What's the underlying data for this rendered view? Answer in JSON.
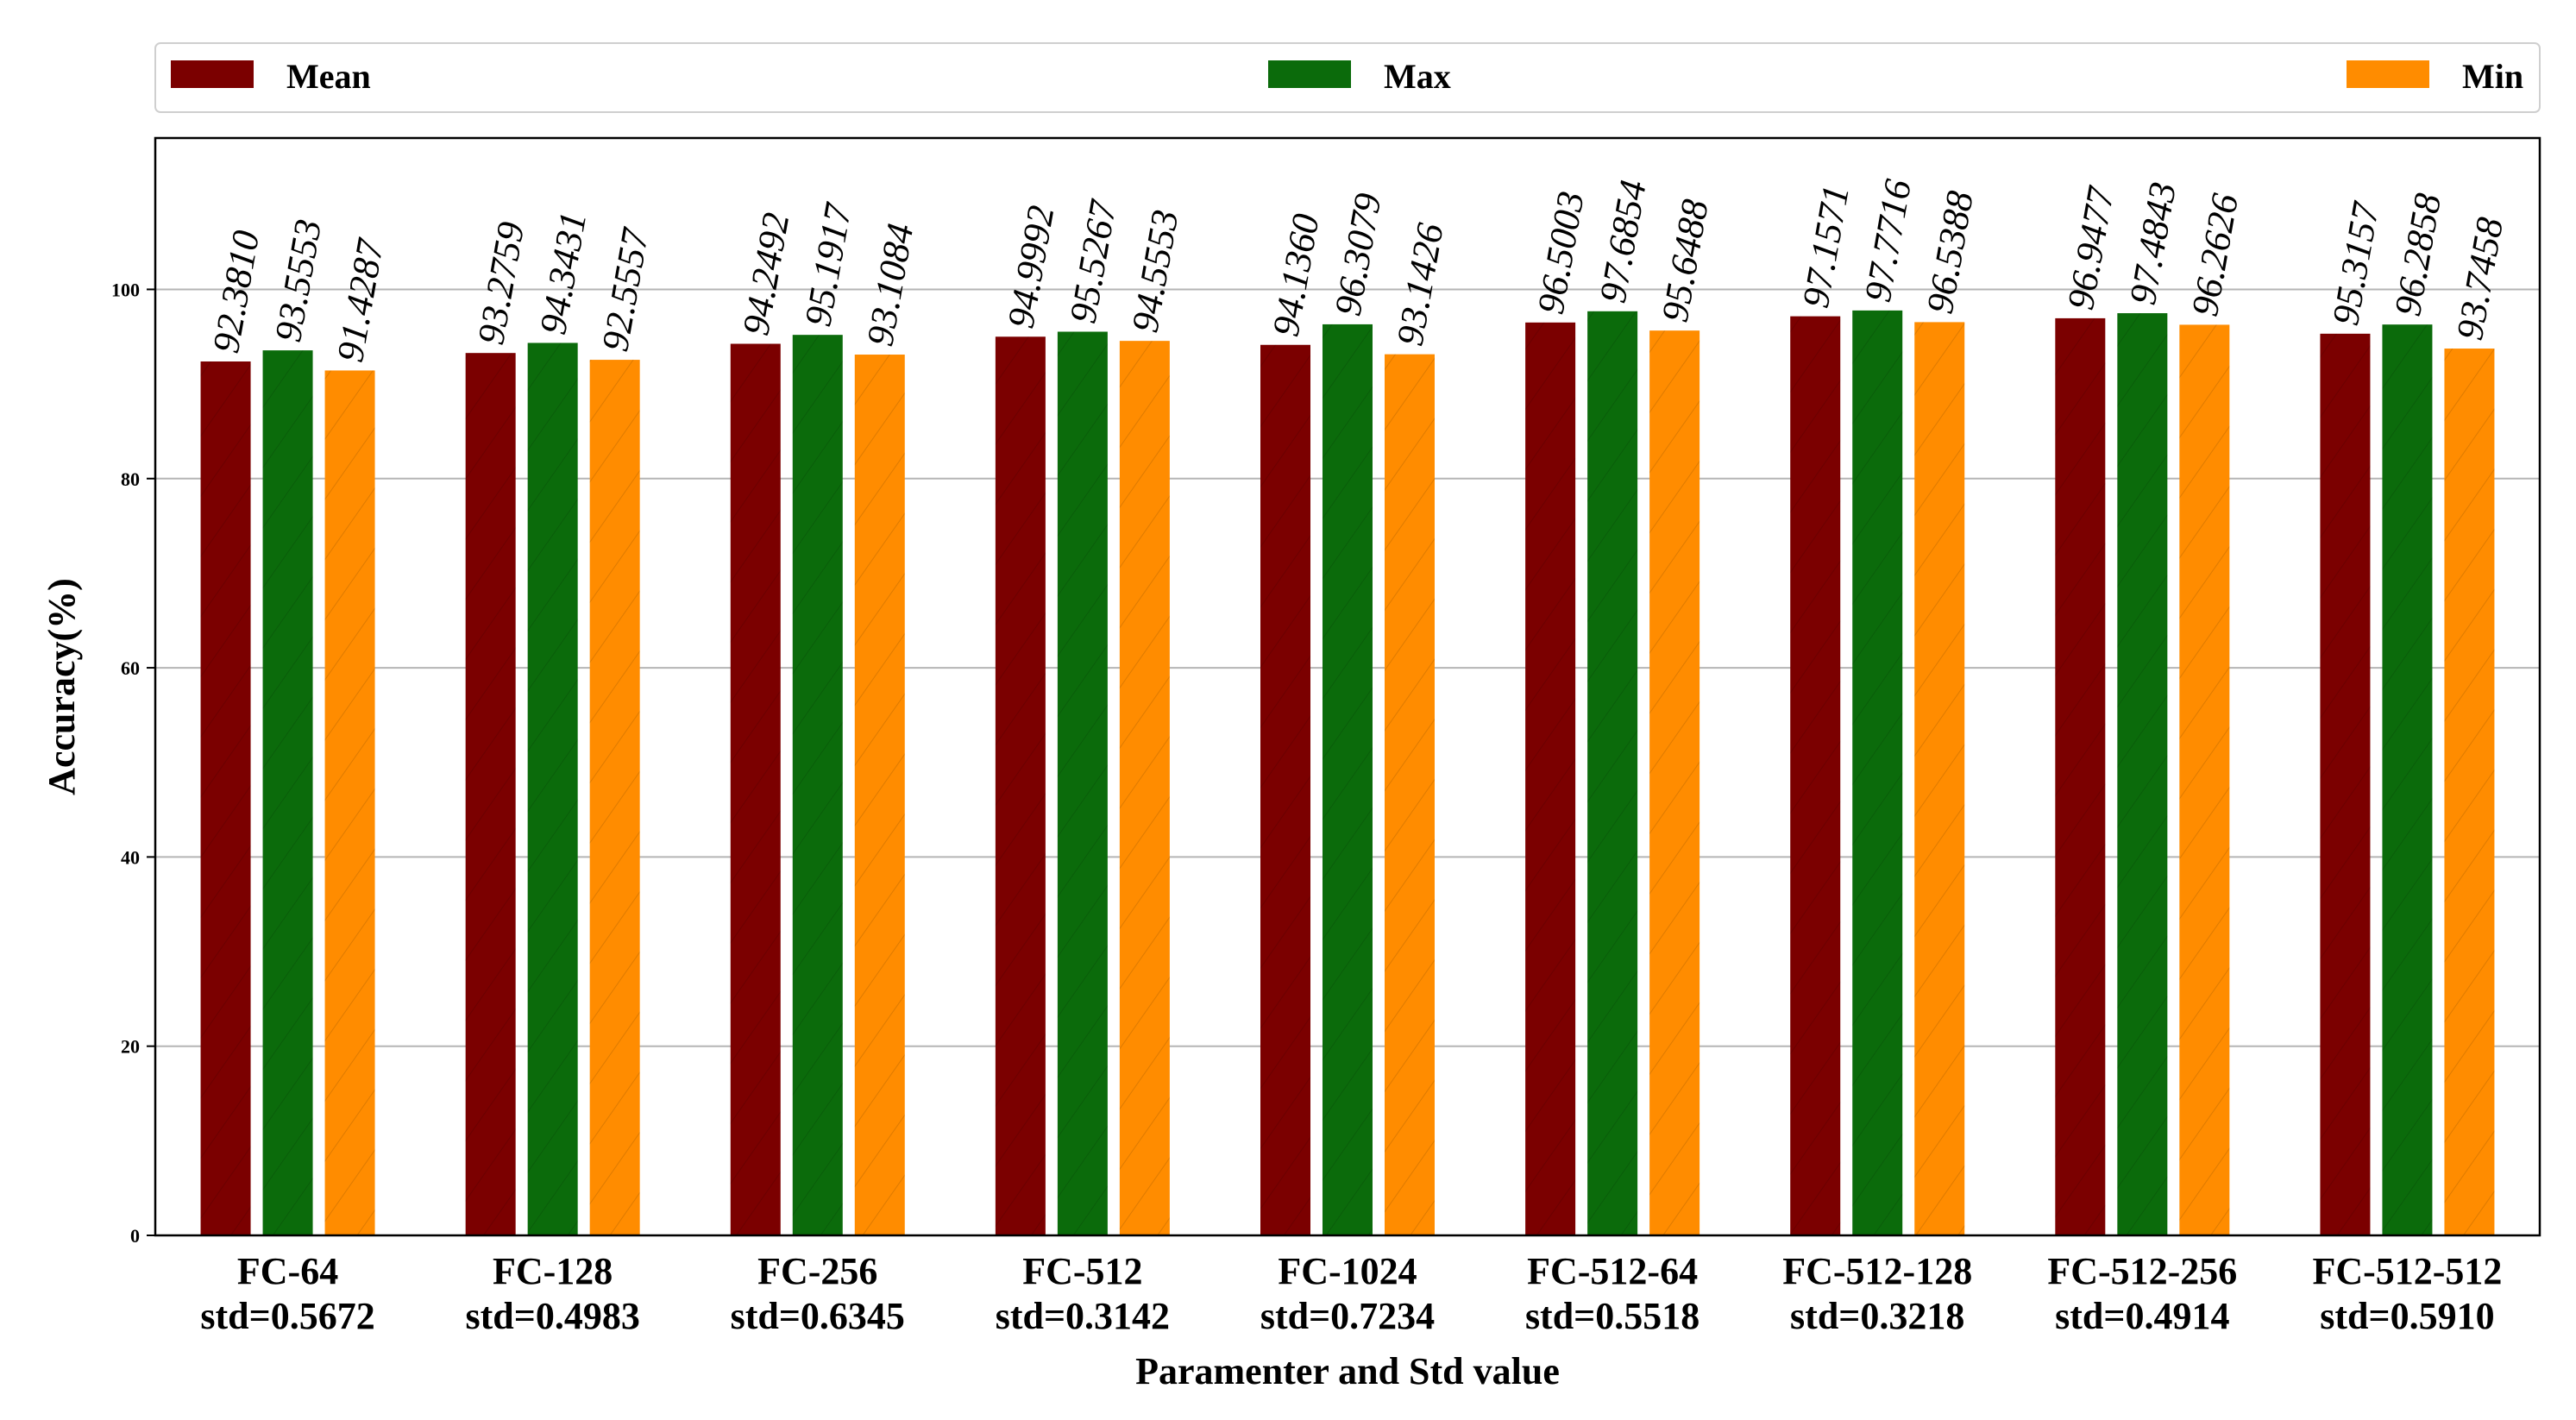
{
  "chart_data": {
    "type": "bar",
    "title": "",
    "xlabel": "Paramenter and Std value",
    "ylabel": "Accuracy(%)",
    "ylim": [
      0,
      116
    ],
    "yticks": [
      0,
      20,
      40,
      60,
      80,
      100
    ],
    "grid": "horizontal",
    "legend_position": "top",
    "categories": [
      {
        "name": "FC-64",
        "std": "std=0.5672"
      },
      {
        "name": "FC-128",
        "std": "std=0.4983"
      },
      {
        "name": "FC-256",
        "std": "std=0.6345"
      },
      {
        "name": "FC-512",
        "std": "std=0.3142"
      },
      {
        "name": "FC-1024",
        "std": "std=0.7234"
      },
      {
        "name": "FC-512-64",
        "std": "std=0.5518"
      },
      {
        "name": "FC-512-128",
        "std": "std=0.3218"
      },
      {
        "name": "FC-512-256",
        "std": "std=0.4914"
      },
      {
        "name": "FC-512-512",
        "std": "std=0.5910"
      }
    ],
    "series": [
      {
        "name": "Mean",
        "color": "#7b0000",
        "values": [
          92.381,
          93.2759,
          94.2492,
          94.9992,
          94.136,
          96.5003,
          97.1571,
          96.9477,
          95.3157
        ],
        "labels": [
          "92.3810",
          "93.2759",
          "94.2492",
          "94.9992",
          "94.1360",
          "96.5003",
          "97.1571",
          "96.9477",
          "95.3157"
        ]
      },
      {
        "name": "Max",
        "color": "#0b6b0b",
        "values": [
          93.5553,
          94.3431,
          95.1917,
          95.5267,
          96.3079,
          97.6854,
          97.7716,
          97.4843,
          96.2858
        ],
        "labels": [
          "93.5553",
          "94.3431",
          "95.1917",
          "95.5267",
          "96.3079",
          "97.6854",
          "97.7716",
          "97.4843",
          "96.2858"
        ]
      },
      {
        "name": "Min",
        "color": "#ff8c00",
        "values": [
          91.4287,
          92.5557,
          93.1084,
          94.5553,
          93.1426,
          95.6488,
          96.5388,
          96.2626,
          93.7458
        ],
        "labels": [
          "91.4287",
          "92.5557",
          "93.1084",
          "94.5553",
          "93.1426",
          "95.6488",
          "96.5388",
          "96.2626",
          "93.7458"
        ]
      }
    ]
  }
}
